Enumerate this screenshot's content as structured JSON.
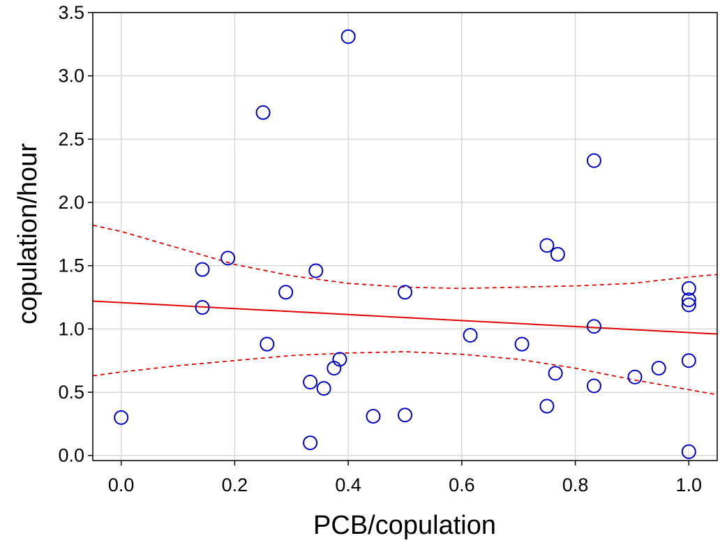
{
  "chart_data": {
    "type": "scatter",
    "title": "",
    "xlabel": "PCB/copulation",
    "ylabel": "copulation/hour",
    "xlim": [
      -0.05,
      1.05
    ],
    "ylim": [
      -0.04,
      3.5
    ],
    "grid": true,
    "x_ticks": [
      0.0,
      0.2,
      0.4,
      0.6,
      0.8,
      1.0
    ],
    "x_tick_labels": [
      "0.0",
      "0.2",
      "0.4",
      "0.6",
      "0.8",
      "1.0"
    ],
    "y_ticks": [
      0.0,
      0.5,
      1.0,
      1.5,
      2.0,
      2.5,
      3.0,
      3.5
    ],
    "y_tick_labels": [
      "0.0",
      "0.5",
      "1.0",
      "1.5",
      "2.0",
      "2.5",
      "3.0",
      "3.5"
    ],
    "marker": {
      "shape": "open-circle",
      "color": "#0000cc"
    },
    "points": [
      {
        "x": 0.0,
        "y": 0.3
      },
      {
        "x": 0.143,
        "y": 1.47
      },
      {
        "x": 0.143,
        "y": 1.17
      },
      {
        "x": 0.188,
        "y": 1.56
      },
      {
        "x": 0.25,
        "y": 2.71
      },
      {
        "x": 0.257,
        "y": 0.88
      },
      {
        "x": 0.29,
        "y": 1.29
      },
      {
        "x": 0.333,
        "y": 0.58
      },
      {
        "x": 0.333,
        "y": 0.1
      },
      {
        "x": 0.343,
        "y": 1.46
      },
      {
        "x": 0.357,
        "y": 0.53
      },
      {
        "x": 0.375,
        "y": 0.69
      },
      {
        "x": 0.385,
        "y": 0.76
      },
      {
        "x": 0.4,
        "y": 3.31
      },
      {
        "x": 0.444,
        "y": 0.31
      },
      {
        "x": 0.5,
        "y": 1.29
      },
      {
        "x": 0.5,
        "y": 0.32
      },
      {
        "x": 0.615,
        "y": 0.95
      },
      {
        "x": 0.706,
        "y": 0.88
      },
      {
        "x": 0.75,
        "y": 1.66
      },
      {
        "x": 0.75,
        "y": 0.39
      },
      {
        "x": 0.765,
        "y": 0.65
      },
      {
        "x": 0.769,
        "y": 1.59
      },
      {
        "x": 0.833,
        "y": 2.33
      },
      {
        "x": 0.833,
        "y": 1.02
      },
      {
        "x": 0.833,
        "y": 0.55
      },
      {
        "x": 0.905,
        "y": 0.62
      },
      {
        "x": 0.947,
        "y": 0.69
      },
      {
        "x": 1.0,
        "y": 1.32
      },
      {
        "x": 1.0,
        "y": 1.23
      },
      {
        "x": 1.0,
        "y": 1.19
      },
      {
        "x": 1.0,
        "y": 0.75
      },
      {
        "x": 1.0,
        "y": 0.03
      }
    ],
    "fit_line": {
      "color": "#e00000",
      "style": "solid",
      "x": [
        -0.05,
        1.05
      ],
      "y": [
        1.22,
        0.96
      ]
    },
    "confidence_band": {
      "color": "#e00000",
      "style": "dashed",
      "x": [
        -0.05,
        0.0,
        0.1,
        0.2,
        0.3,
        0.4,
        0.5,
        0.6,
        0.7,
        0.8,
        0.9,
        1.0,
        1.05
      ],
      "upper": [
        1.82,
        1.77,
        1.64,
        1.51,
        1.42,
        1.36,
        1.33,
        1.32,
        1.33,
        1.34,
        1.36,
        1.41,
        1.43
      ],
      "lower": [
        0.63,
        0.66,
        0.71,
        0.75,
        0.79,
        0.81,
        0.82,
        0.8,
        0.76,
        0.69,
        0.6,
        0.52,
        0.48
      ]
    }
  }
}
